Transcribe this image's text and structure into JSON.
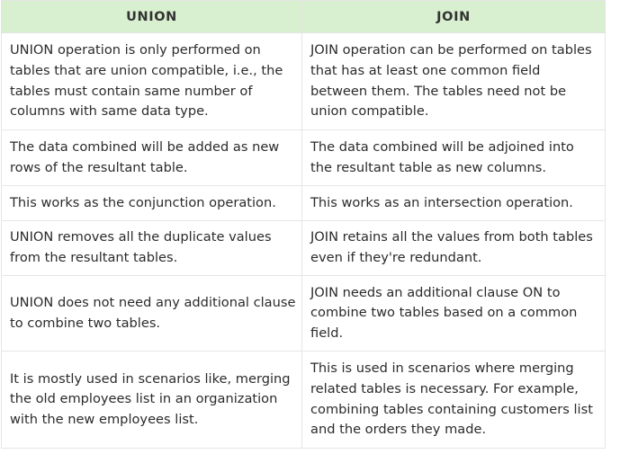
{
  "table": {
    "headers": [
      "UNION",
      "JOIN"
    ],
    "rows": [
      {
        "union": "UNION operation is only performed on tables that are union compatible, i.e., the tables must contain same number of columns with same data type.",
        "join": "JOIN operation can be performed on tables that has at least one common field between them. The tables need not be union compatible."
      },
      {
        "union": "The data combined will be added as new rows of the resultant table.",
        "join": "The data combined will be adjoined into the resultant table as new columns."
      },
      {
        "union": "This works as the conjunction operation.",
        "join": "This works as an intersection operation."
      },
      {
        "union": "UNION removes all the duplicate values from the resultant tables.",
        "join": "JOIN retains all the values from both tables even if they're redundant."
      },
      {
        "union": "UNION does not need any additional clause to combine two tables.",
        "join": "JOIN needs an additional clause ON to combine two tables based on a common field."
      },
      {
        "union": "It is mostly used in scenarios like, merging the old employees list in an organization with the new employees list.",
        "join": "This is used in scenarios where merging related tables is necessary. For example, combining tables containing customers list and the orders they made."
      }
    ]
  },
  "colors": {
    "header_bg": "#d9f0d0",
    "border": "#e6e6e6",
    "text": "#2b2b2b"
  }
}
